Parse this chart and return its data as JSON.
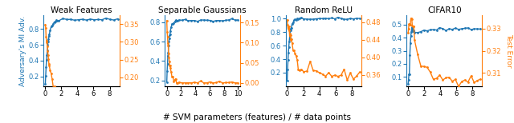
{
  "panels": [
    {
      "title": "Weak Features",
      "xlim": [
        -0.2,
        9.2
      ],
      "xticks": [
        0,
        2,
        4,
        6,
        8
      ],
      "blue_ylim": [
        0.08,
        0.97
      ],
      "blue_yticks": [
        0.2,
        0.4,
        0.6,
        0.8
      ],
      "orange_ylim": [
        0.175,
        0.375
      ],
      "orange_yticks": [
        0.2,
        0.25,
        0.3,
        0.35
      ],
      "show_left_ylabel": true,
      "show_right_ylabel": false
    },
    {
      "title": "Separable Gaussians",
      "xlim": [
        -0.3,
        10.3
      ],
      "xticks": [
        0,
        2,
        4,
        6,
        8,
        10
      ],
      "blue_ylim": [
        0.14,
        0.87
      ],
      "blue_yticks": [
        0.2,
        0.4,
        0.6,
        0.8
      ],
      "orange_ylim": [
        -0.008,
        0.168
      ],
      "orange_yticks": [
        0.0,
        0.05,
        0.1,
        0.15
      ],
      "show_left_ylabel": false,
      "show_right_ylabel": false
    },
    {
      "title": "Random ReLU",
      "xlim": [
        -0.2,
        9.2
      ],
      "xticks": [
        0,
        2,
        4,
        6,
        8
      ],
      "blue_ylim": [
        0.0,
        1.05
      ],
      "blue_yticks": [
        0.2,
        0.4,
        0.6,
        0.8,
        1.0
      ],
      "orange_ylim": [
        0.335,
        0.495
      ],
      "orange_yticks": [
        0.36,
        0.4,
        0.44,
        0.48
      ],
      "show_left_ylabel": false,
      "show_right_ylabel": false
    },
    {
      "title": "CIFAR10",
      "xlim": [
        -0.2,
        9.2
      ],
      "xticks": [
        0,
        2,
        4,
        6,
        8
      ],
      "blue_ylim": [
        0.03,
        0.57
      ],
      "blue_yticks": [
        0.1,
        0.2,
        0.3,
        0.4,
        0.5
      ],
      "orange_ylim": [
        0.304,
        0.336
      ],
      "orange_yticks": [
        0.31,
        0.32,
        0.33
      ],
      "show_left_ylabel": false,
      "show_right_ylabel": true
    }
  ],
  "xlabel": "# SVM parameters (features) / # data points",
  "left_ylabel": "Adversary's MI Adv.",
  "right_ylabel": "Test Error",
  "blue_color": "#1f77b4",
  "orange_color": "#ff7f0e",
  "marker": "o",
  "markersize": 2.0,
  "linewidth": 1.0
}
